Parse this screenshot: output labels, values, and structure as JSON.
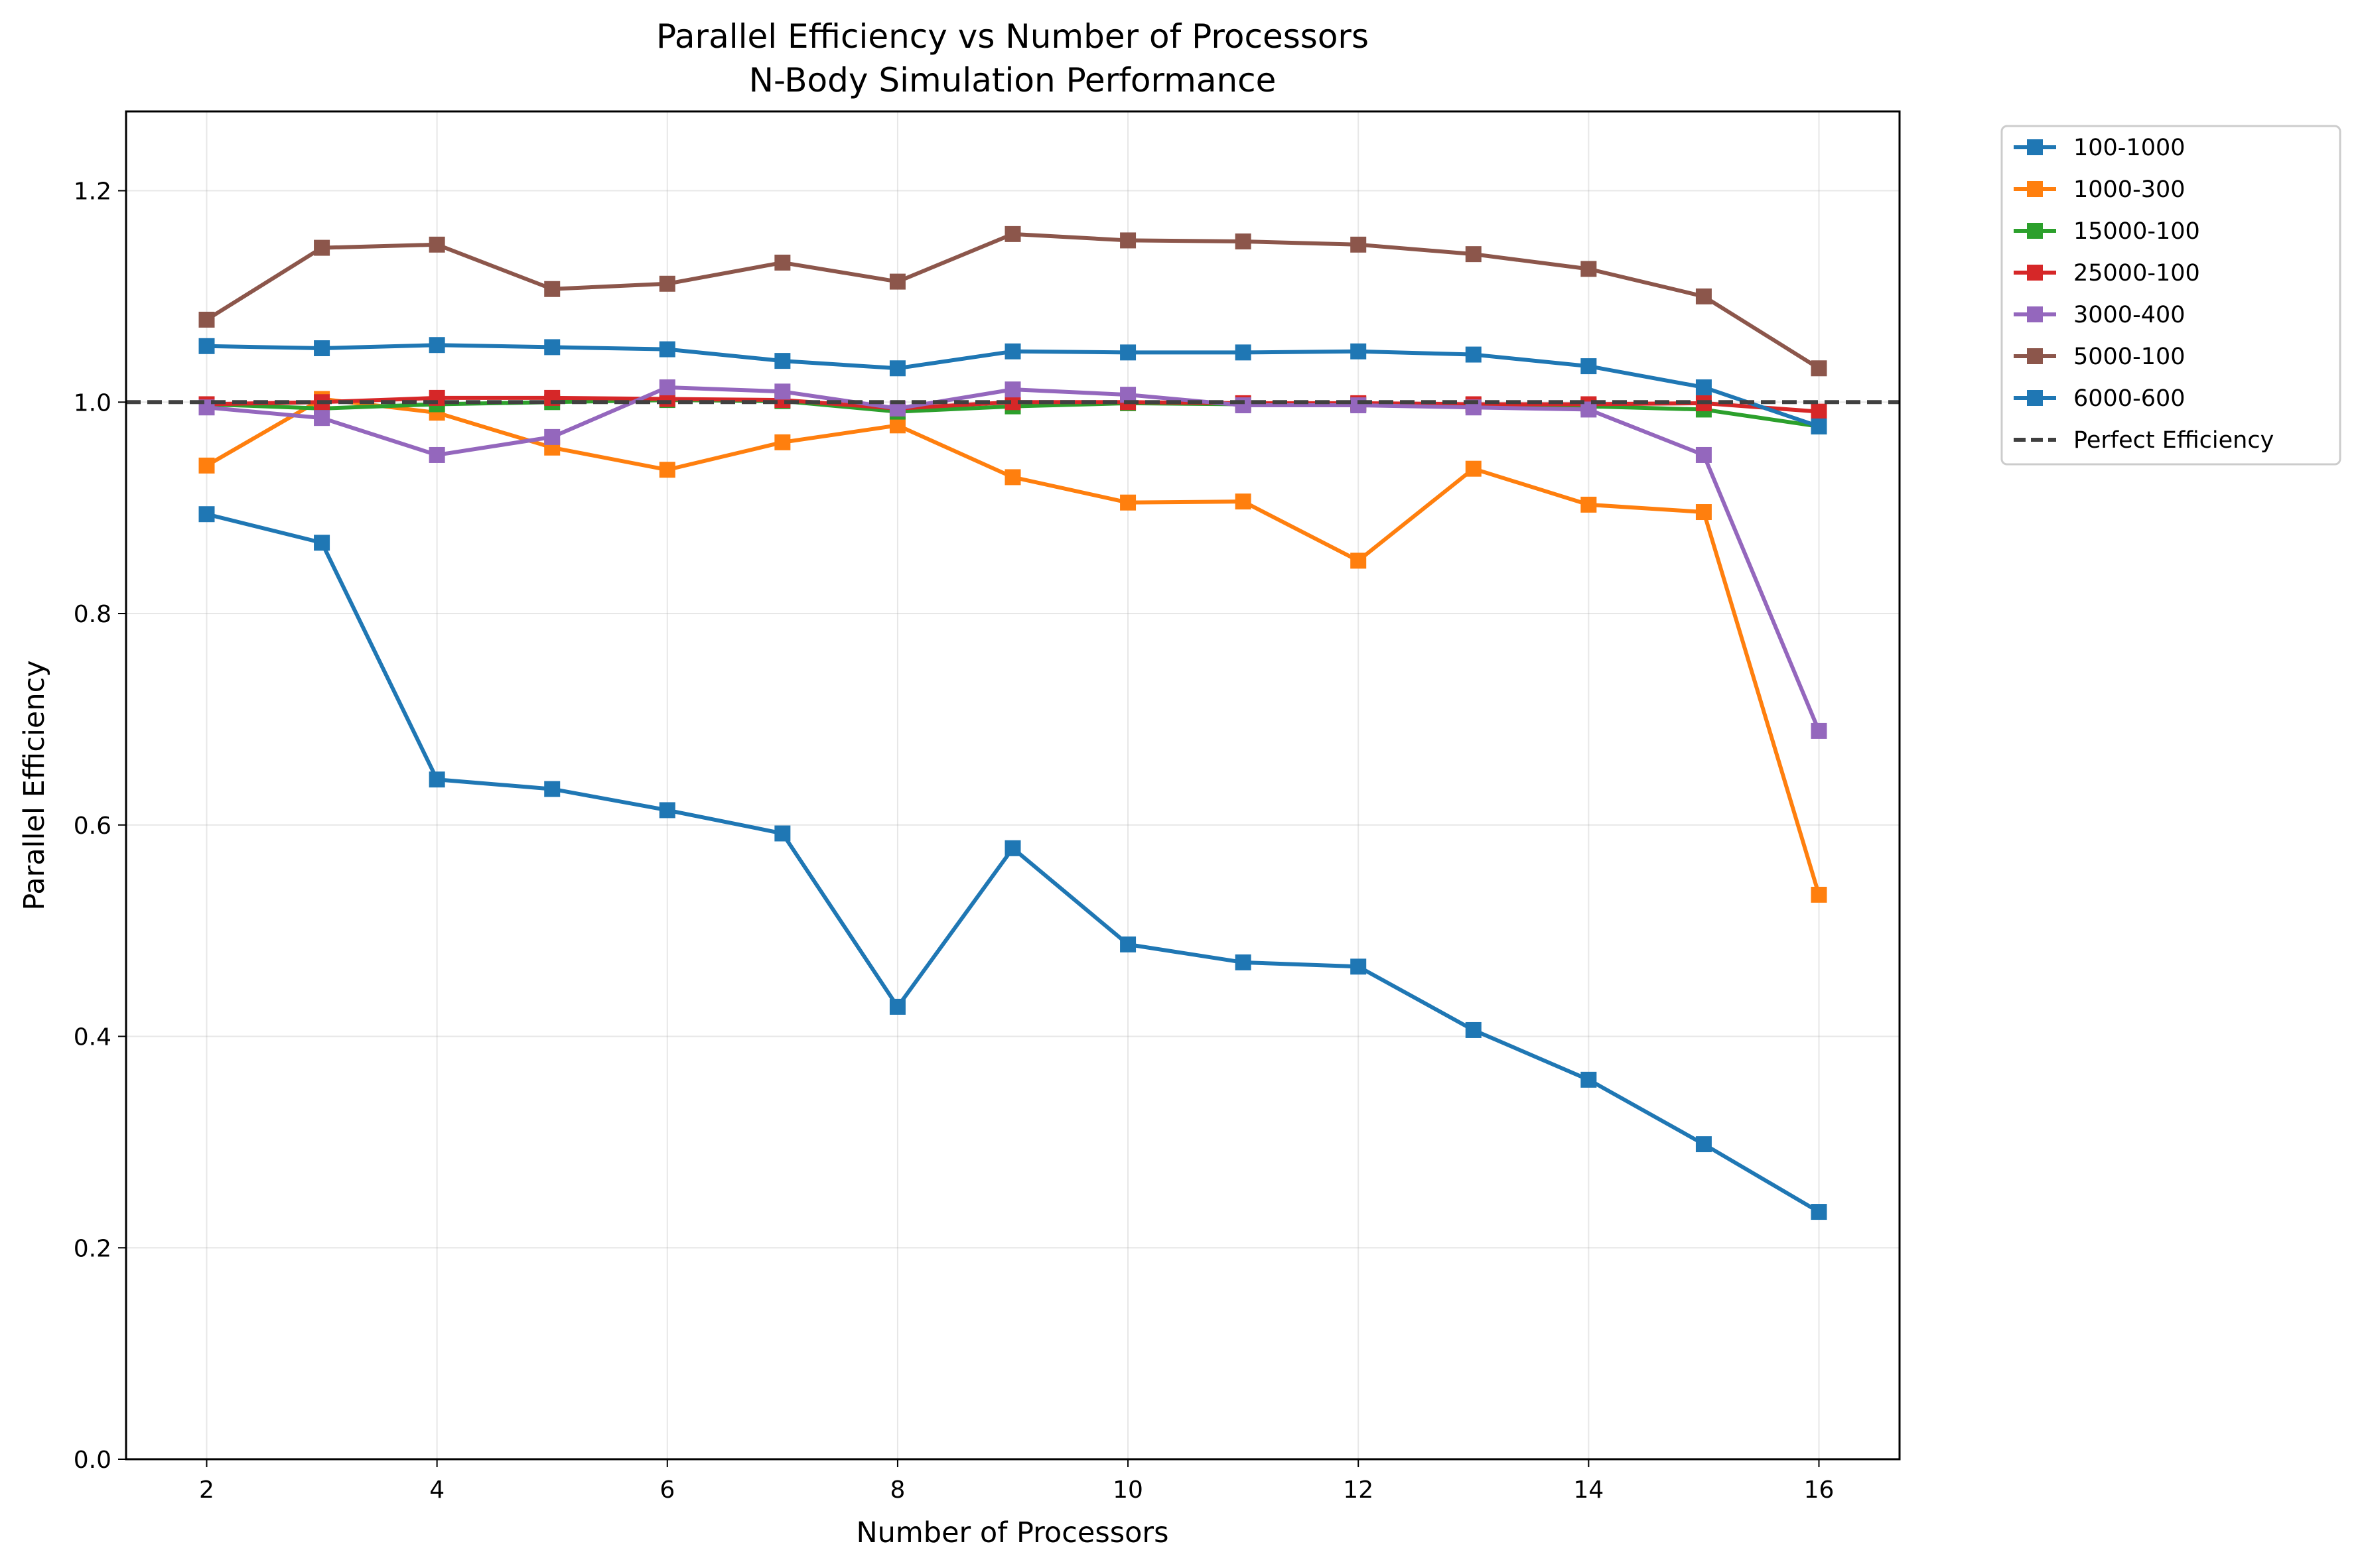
{
  "chart_data": {
    "type": "line",
    "title": "Parallel Efficiency vs Number of Processors",
    "subtitle": "N-Body Simulation Performance",
    "xlabel": "Number of Processors",
    "ylabel": "Parallel Efficiency",
    "xlim": [
      1.3,
      16.7
    ],
    "ylim": [
      0.0,
      1.275
    ],
    "xticks": [
      2,
      4,
      6,
      8,
      10,
      12,
      14,
      16
    ],
    "yticks": [
      0.0,
      0.2,
      0.4,
      0.6,
      0.8,
      1.0,
      1.2
    ],
    "ytick_labels": [
      "0.0",
      "0.2",
      "0.4",
      "0.6",
      "0.8",
      "1.0",
      "1.2"
    ],
    "grid": true,
    "legend_position": "outside top-right",
    "marker": "square",
    "x": [
      2,
      3,
      4,
      5,
      6,
      7,
      8,
      9,
      10,
      11,
      12,
      13,
      14,
      15,
      16
    ],
    "series": [
      {
        "name": "100-1000",
        "color": "#1f77b4",
        "values": [
          0.894,
          0.867,
          0.643,
          0.634,
          0.614,
          0.592,
          0.428,
          0.578,
          0.487,
          0.47,
          0.466,
          0.406,
          0.359,
          0.298,
          0.234
        ]
      },
      {
        "name": "1000-300",
        "color": "#ff7f0e",
        "values": [
          0.94,
          1.003,
          0.99,
          0.957,
          0.936,
          0.962,
          0.978,
          0.929,
          0.905,
          0.906,
          0.85,
          0.937,
          0.903,
          0.896,
          0.534
        ]
      },
      {
        "name": "15000-100",
        "color": "#2ca02c",
        "values": [
          0.998,
          0.994,
          0.998,
          1.0,
          1.002,
          1.001,
          0.991,
          0.996,
          0.999,
          0.998,
          0.998,
          0.997,
          0.996,
          0.993,
          0.977
        ]
      },
      {
        "name": "25000-100",
        "color": "#d62728",
        "values": [
          0.998,
          1.0,
          1.004,
          1.004,
          1.003,
          1.002,
          0.994,
          1.0,
          1.0,
          0.999,
          0.999,
          0.998,
          0.998,
          0.999,
          0.991
        ]
      },
      {
        "name": "3000-400",
        "color": "#9467bd",
        "values": [
          0.995,
          0.985,
          0.95,
          0.967,
          1.014,
          1.01,
          0.994,
          1.012,
          1.007,
          0.997,
          0.997,
          0.995,
          0.993,
          0.95,
          0.689
        ]
      },
      {
        "name": "5000-100",
        "color": "#8c564b",
        "values": [
          1.078,
          1.146,
          1.149,
          1.107,
          1.112,
          1.132,
          1.114,
          1.159,
          1.153,
          1.152,
          1.149,
          1.14,
          1.126,
          1.1,
          1.032
        ]
      },
      {
        "name": "6000-600",
        "color": "#1f77b4",
        "values": [
          1.053,
          1.051,
          1.054,
          1.052,
          1.05,
          1.039,
          1.032,
          1.048,
          1.047,
          1.047,
          1.048,
          1.045,
          1.034,
          1.014,
          0.977
        ]
      }
    ],
    "reference_line": {
      "name": "Perfect Efficiency",
      "y": 1.0,
      "color": "#404040",
      "style": "dashed"
    }
  }
}
